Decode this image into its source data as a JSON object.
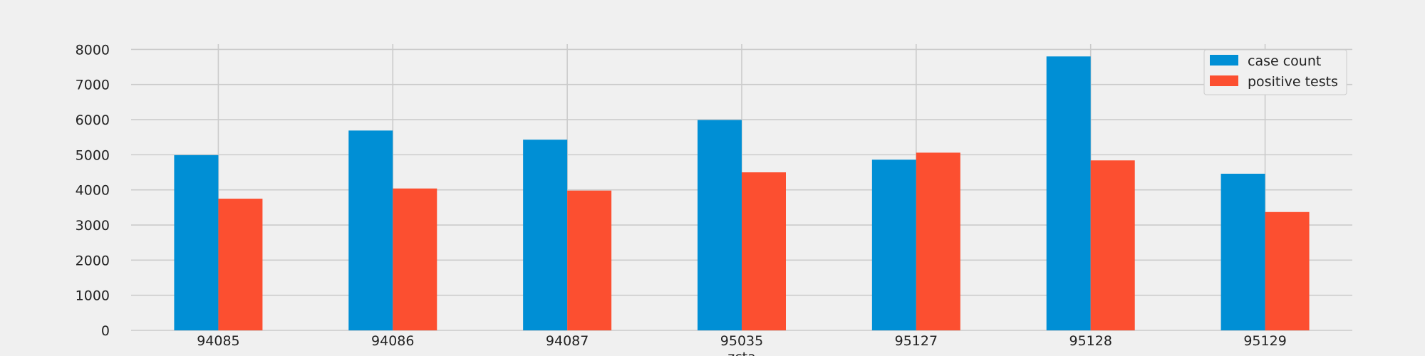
{
  "chart_data": {
    "type": "bar",
    "xlabel": "zcta",
    "ylabel": "",
    "title": "",
    "categories": [
      "94085",
      "94086",
      "94087",
      "95035",
      "95127",
      "95128",
      "95129"
    ],
    "series": [
      {
        "name": "case count",
        "values": [
          4990,
          5690,
          5430,
          5990,
          4860,
          7800,
          4460
        ],
        "color": "#008fd5"
      },
      {
        "name": "positive tests",
        "values": [
          3750,
          4040,
          3980,
          4500,
          5060,
          4840,
          3370
        ],
        "color": "#fc4f30"
      }
    ],
    "yticks": [
      0,
      1000,
      2000,
      3000,
      4000,
      5000,
      6000,
      7000,
      8000
    ],
    "ylim": [
      0,
      8150
    ],
    "grid": true,
    "legend_position": "top-right",
    "background": "#f0f0f0",
    "grid_color": "#cbcbcb"
  }
}
